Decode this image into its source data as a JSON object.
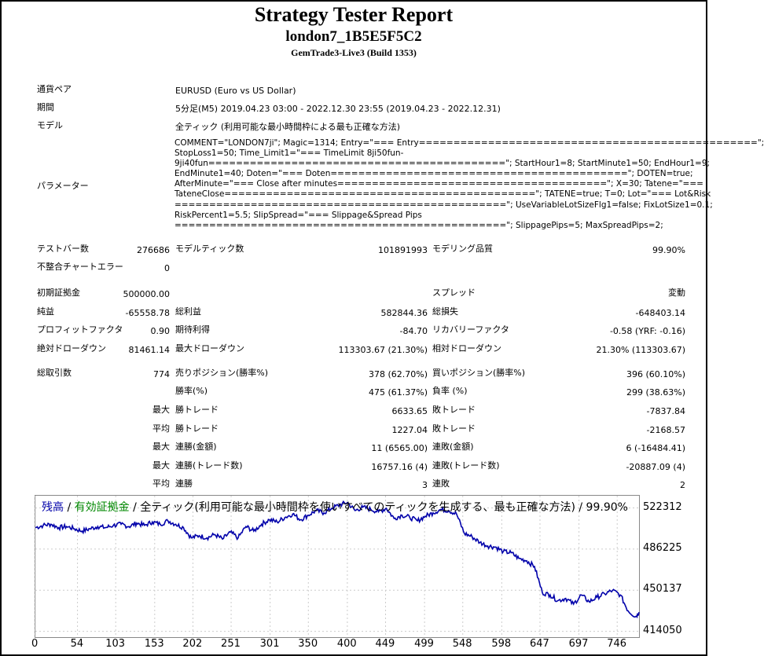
{
  "header": {
    "title": "Strategy Tester Report",
    "subtitle": "london7_1B5E5F5C2",
    "build": "GemTrade3-Live3 (Build 1353)"
  },
  "info": {
    "symbol_label": "通貨ペア",
    "symbol_value": "EURUSD (Euro vs US Dollar)",
    "period_label": "期間",
    "period_value": "5分足(M5) 2019.04.23 03:00 - 2022.12.30 23:55 (2019.04.23 - 2022.12.31)",
    "model_label": "モデル",
    "model_value": "全ティック (利用可能な最小時間枠による最も正確な方法)",
    "params_label": "パラメーター",
    "params_lines": [
      "COMMENT=\"LONDON7ji\"; Magic=1314; Entry=\"=== Entry=================================================\";",
      "StopLoss1=50; Time_Limit1=\"=== TimeLimit 8ji50fun-",
      "9ji40fun===========================================\"; StartHour1=8; StartMinute1=50; EndHour1=9;",
      "EndMinute1=40; Doten=\"=== Doten===========================================\"; DOTEN=true;",
      "AfterMinute=\"=== Close after minutes=======================================\"; X=30; Tatene=\"===",
      "TateneClose=============================================\"; TATENE=true; T=0; Lot=\"=== Lot&Risk",
      "================================================\"; UseVariableLotSizeFlg1=false; FixLotSize1=0.1;",
      "RiskPercent1=5.5; SlipSpread=\"=== Slippage&Spread Pips",
      "================================================\"; SlippagePips=5; MaxSpreadPips=2;"
    ]
  },
  "stats": {
    "bars_label": "テストバー数",
    "bars_value": "276686",
    "ticks_label": "モデルティック数",
    "ticks_value": "101891993",
    "quality_label": "モデリング品質",
    "quality_value": "99.90%",
    "mismatch_label": "不整合チャートエラー",
    "mismatch_value": "0",
    "deposit_label": "初期証拠金",
    "deposit_value": "500000.00",
    "spread_label": "スプレッド",
    "spread_value": "変動",
    "net_label": "純益",
    "net_value": "-65558.78",
    "gross_profit_label": "総利益",
    "gross_profit_value": "582844.36",
    "gross_loss_label": "総損失",
    "gross_loss_value": "-648403.14",
    "pf_label": "プロフィットファクタ",
    "pf_value": "0.90",
    "expected_label": "期待利得",
    "expected_value": "-84.70",
    "recovery_label": "リカバリーファクタ",
    "recovery_value": "-0.58 (YRF: -0.16)",
    "abs_dd_label": "絶対ドローダウン",
    "abs_dd_value": "81461.14",
    "max_dd_label": "最大ドローダウン",
    "max_dd_value": "113303.67 (21.30%)",
    "rel_dd_label": "相対ドローダウン",
    "rel_dd_value": "21.30% (113303.67)",
    "total_trades_label": "総取引数",
    "total_trades_value": "774",
    "short_label": "売りポジション(勝率%)",
    "short_value": "378 (62.70%)",
    "long_label": "買いポジション(勝率%)",
    "long_value": "396 (60.10%)",
    "win_label": "勝率(%)",
    "win_value": "475 (61.37%)",
    "loss_label": "負率 (%)",
    "loss_value": "299 (38.63%)",
    "max_prefix": "最大",
    "avg_prefix": "平均",
    "largest_win_label": "勝トレード",
    "largest_win_value": "6633.65",
    "largest_loss_label": "敗トレード",
    "largest_loss_value": "-7837.84",
    "avg_win_label": "勝トレード",
    "avg_win_value": "1227.04",
    "avg_loss_label": "敗トレード",
    "avg_loss_value": "-2168.57",
    "cons_wins_label": "連勝(金額)",
    "cons_wins_value": "11 (6565.00)",
    "cons_losses_label": "連敗(金額)",
    "cons_losses_value": "6 (-16484.41)",
    "cons_profit_label": "連勝(トレード数)",
    "cons_profit_value": "16757.16 (4)",
    "cons_loss_label": "連敗(トレード数)",
    "cons_loss_value": "-20887.09 (4)",
    "avg_cons_wins_label": "連勝",
    "avg_cons_wins_value": "3",
    "avg_cons_losses_label": "連敗",
    "avg_cons_losses_value": "2"
  },
  "chart_data": {
    "type": "line",
    "legend": {
      "balance": "残高",
      "sep1": " / ",
      "equity": "有効証拠金",
      "rest": " / 全ティック(利用可能な最小時間枠を使いすべてのティックを生成する、最も正確な方法) / 99.90%"
    },
    "colors": {
      "balance": "#0000aa",
      "equity": "#008800",
      "line": "#0000aa",
      "grid": "#cccccc"
    },
    "y_ticks": [
      "522312",
      "486225",
      "450137",
      "414050"
    ],
    "x_ticks": [
      "0",
      "54",
      "103",
      "153",
      "202",
      "251",
      "301",
      "350",
      "400",
      "449",
      "499",
      "548",
      "598",
      "647",
      "697",
      "746"
    ],
    "xlim": [
      0,
      774
    ],
    "ylim": [
      409000,
      533000
    ],
    "series": [
      {
        "x": [
          0,
          10,
          20,
          30,
          40,
          50,
          60,
          70,
          80,
          90,
          100,
          110,
          120,
          130,
          140,
          150,
          160,
          170,
          180,
          190,
          200,
          210,
          220,
          230,
          240,
          250,
          260,
          270,
          280,
          290,
          300,
          310,
          320,
          330,
          340,
          350,
          360,
          370,
          380,
          390,
          400,
          410,
          420,
          430,
          440,
          450,
          460,
          470,
          480,
          490,
          500,
          510,
          520,
          530,
          540,
          550,
          560,
          570,
          580,
          590,
          600,
          610,
          620,
          630,
          640,
          650,
          660,
          670,
          680,
          690,
          700,
          710,
          720,
          730,
          740,
          750,
          760,
          770,
          774
        ],
        "y": [
          505000,
          507000,
          508000,
          505000,
          506000,
          504000,
          502000,
          504000,
          506000,
          505000,
          507000,
          508000,
          506000,
          509000,
          507000,
          510000,
          508000,
          511000,
          508000,
          505000,
          496000,
          498000,
          496000,
          499000,
          495000,
          501000,
          496000,
          506000,
          502000,
          508000,
          512000,
          510000,
          514000,
          517000,
          512000,
          516000,
          520000,
          518000,
          522000,
          525000,
          527000,
          520000,
          523000,
          521000,
          519000,
          522000,
          513000,
          516000,
          514000,
          511000,
          515000,
          518000,
          521000,
          520000,
          517000,
          500000,
          497000,
          492000,
          489000,
          488000,
          484000,
          483000,
          478000,
          476000,
          471000,
          448000,
          446000,
          441000,
          443000,
          438000,
          446000,
          440000,
          444000,
          447000,
          450000,
          446000,
          432000,
          427000,
          431000
        ]
      }
    ]
  }
}
